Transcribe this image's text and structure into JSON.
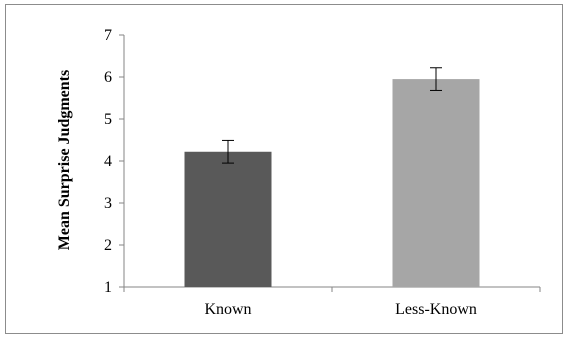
{
  "chart_data": {
    "type": "bar",
    "categories": [
      "Known",
      "Less-Known"
    ],
    "values": [
      4.22,
      5.95
    ],
    "error": [
      0.27,
      0.27
    ],
    "colors": [
      "#595959",
      "#a6a6a6"
    ],
    "xlabel": "",
    "ylabel": "Mean Surprise Judgments",
    "ylim": [
      1,
      7
    ],
    "yticks": [
      "1",
      "2",
      "3",
      "4",
      "5",
      "6",
      "7"
    ],
    "grid": false,
    "legend": "none"
  }
}
